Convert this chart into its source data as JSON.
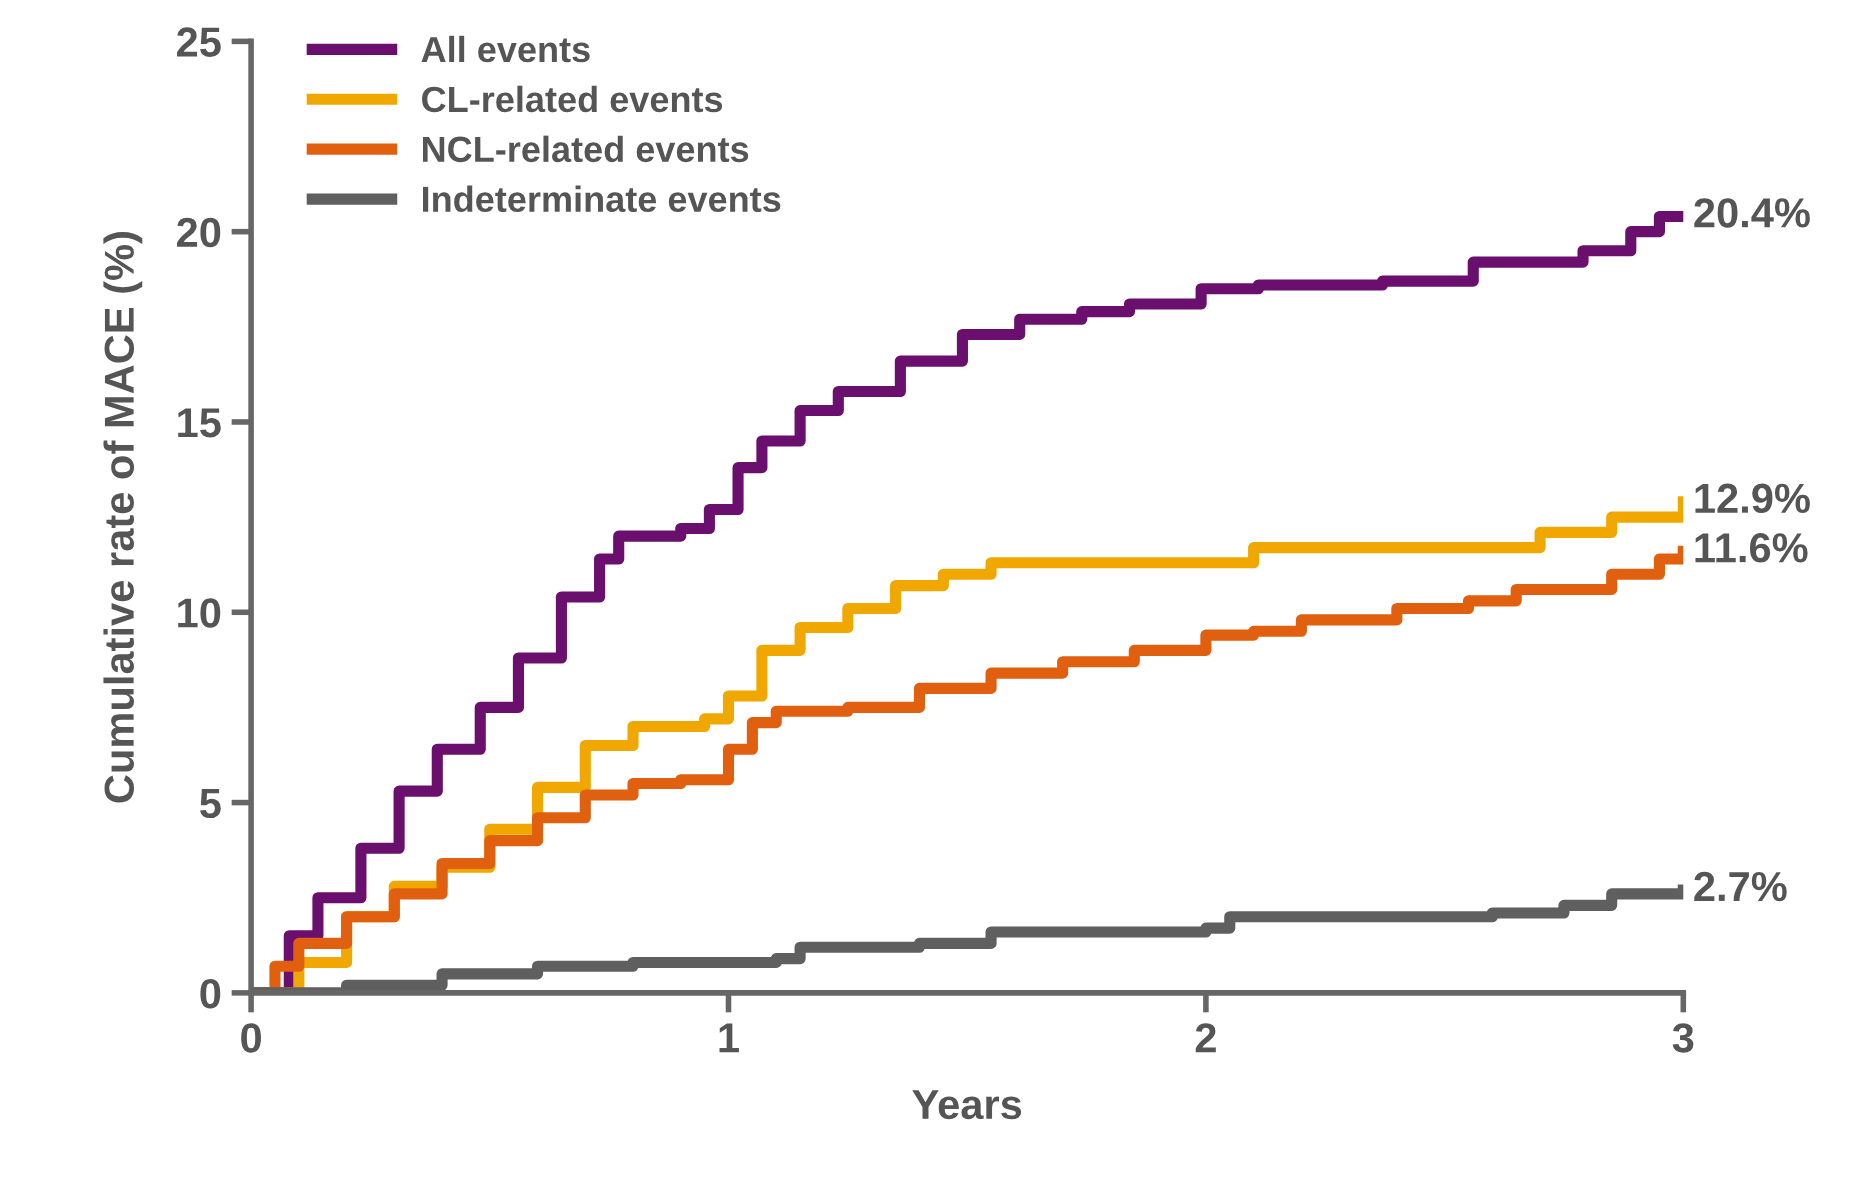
{
  "chart_data": {
    "type": "step",
    "xlabel": "Years",
    "ylabel": "Cumulative rate of MACE (%)",
    "xlim": [
      0,
      3
    ],
    "ylim": [
      0,
      25
    ],
    "xticks": [
      0,
      1,
      2,
      3
    ],
    "yticks": [
      0,
      5,
      10,
      15,
      20,
      25
    ],
    "grid": false,
    "legend": "top left",
    "series": [
      {
        "name": "All events",
        "color": "#6a0f6e",
        "x": [
          0,
          0.08,
          0.14,
          0.23,
          0.31,
          0.39,
          0.48,
          0.56,
          0.65,
          0.73,
          0.77,
          0.9,
          0.96,
          1.02,
          1.07,
          1.15,
          1.23,
          1.36,
          1.49,
          1.61,
          1.74,
          1.84,
          1.99,
          2.11,
          2.37,
          2.56,
          2.79,
          2.89,
          2.95,
          3
        ],
        "values": [
          0,
          1.5,
          2.5,
          3.8,
          5.3,
          6.4,
          7.5,
          8.8,
          10.4,
          11.4,
          12.0,
          12.2,
          12.7,
          13.8,
          14.5,
          15.3,
          15.8,
          16.6,
          17.3,
          17.7,
          17.9,
          18.1,
          18.5,
          18.6,
          18.7,
          19.2,
          19.5,
          20.0,
          20.4,
          20.4
        ]
      },
      {
        "name": "CL-related events",
        "color": "#f0a800",
        "x": [
          0,
          0.1,
          0.2,
          0.3,
          0.4,
          0.5,
          0.6,
          0.7,
          0.8,
          0.95,
          1.0,
          1.07,
          1.15,
          1.25,
          1.35,
          1.45,
          1.55,
          1.9,
          2.1,
          2.55,
          2.7,
          2.85,
          3
        ],
        "values": [
          0,
          0.8,
          2.0,
          2.8,
          3.3,
          4.3,
          5.4,
          6.5,
          7.0,
          7.2,
          7.8,
          9.0,
          9.6,
          10.1,
          10.7,
          11.0,
          11.3,
          11.3,
          11.7,
          11.7,
          12.1,
          12.5,
          12.9
        ]
      },
      {
        "name": "NCL-related events",
        "color": "#e06010",
        "x": [
          0,
          0.05,
          0.1,
          0.2,
          0.3,
          0.4,
          0.5,
          0.6,
          0.7,
          0.8,
          0.9,
          1.0,
          1.05,
          1.1,
          1.25,
          1.4,
          1.55,
          1.7,
          1.85,
          2.0,
          2.1,
          2.2,
          2.4,
          2.55,
          2.65,
          2.85,
          2.95,
          3
        ],
        "values": [
          0,
          0.7,
          1.3,
          2.0,
          2.6,
          3.4,
          4.0,
          4.6,
          5.2,
          5.5,
          5.6,
          6.4,
          7.1,
          7.4,
          7.5,
          8.0,
          8.4,
          8.7,
          9.0,
          9.4,
          9.5,
          9.8,
          10.1,
          10.3,
          10.6,
          11.0,
          11.4,
          11.6
        ]
      },
      {
        "name": "Indeterminate events",
        "color": "#5f5f5f",
        "x": [
          0,
          0.2,
          0.4,
          0.6,
          0.8,
          1.1,
          1.15,
          1.4,
          1.55,
          2.0,
          2.05,
          2.6,
          2.75,
          2.85,
          3
        ],
        "values": [
          0,
          0.2,
          0.5,
          0.7,
          0.8,
          0.9,
          1.2,
          1.3,
          1.6,
          1.7,
          2.0,
          2.1,
          2.3,
          2.6,
          2.7
        ]
      }
    ],
    "annotations": [
      "20.4%",
      "12.9%",
      "11.6%",
      "2.7%"
    ]
  }
}
